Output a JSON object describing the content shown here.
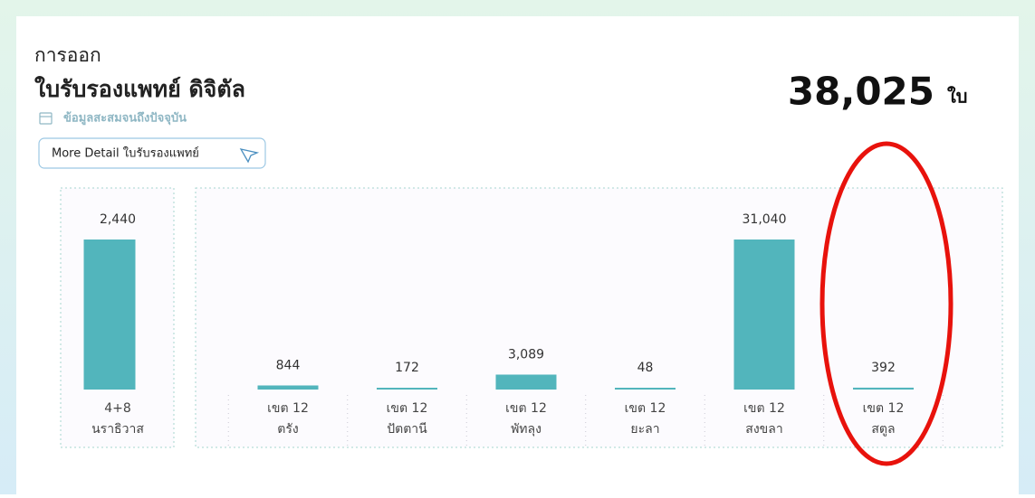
{
  "header": {
    "title_line1": "การออก",
    "title_line2": "ใบรับรองแพทย์ ดิจิตัล",
    "subtitle": "ข้อมูลสะสมจนถึงปัจจุบัน",
    "button": "More Detail ใบรับรองแพทย์",
    "total": "38,025",
    "total_unit": "ใบ"
  },
  "chart_data": [
    {
      "type": "bar",
      "color": "#52b5bc",
      "categories": [
        [
          "4+8",
          "นราธิวาส"
        ]
      ],
      "values": [
        2440
      ],
      "value_labels": [
        "2,440"
      ]
    },
    {
      "type": "bar",
      "color": "#52b5bc",
      "categories": [
        [
          "เขต 12",
          "ตรัง"
        ],
        [
          "เขต 12",
          "ปัตตานี"
        ],
        [
          "เขต 12",
          "พัทลุง"
        ],
        [
          "เขต 12",
          "ยะลา"
        ],
        [
          "เขต 12",
          "สงขลา"
        ],
        [
          "เขต 12",
          "สตูล"
        ]
      ],
      "values": [
        844,
        172,
        3089,
        48,
        31040,
        392
      ],
      "value_labels": [
        "844",
        "172",
        "3,089",
        "48",
        "31,040",
        "392"
      ]
    }
  ]
}
